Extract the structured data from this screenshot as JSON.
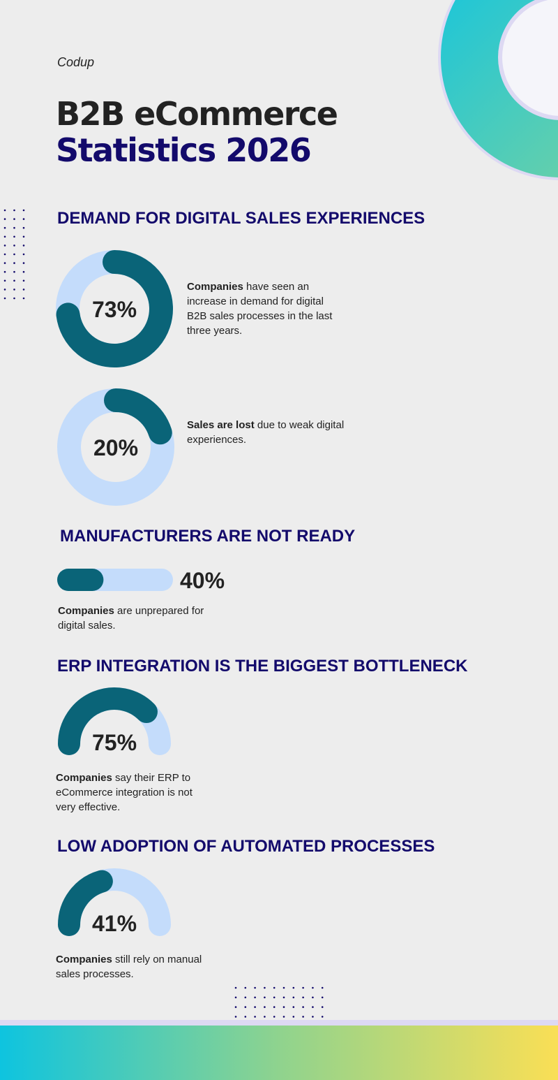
{
  "brand": "Codup",
  "title": {
    "line1": "B2B eCommerce",
    "line2": "Statistics 2026"
  },
  "sections": [
    {
      "heading": "DEMAND FOR DIGITAL SALES EXPERIENCES",
      "stats": [
        {
          "type": "donut",
          "value": 73,
          "value_label": "73%",
          "bold": "Companies",
          "text": "have seen an increase in demand for digital B2B sales processes in the last three years."
        },
        {
          "type": "donut",
          "value": 20,
          "value_label": "20%",
          "bold": "Sales are lost",
          "text": "due to weak digital experiences."
        }
      ]
    },
    {
      "heading": "MANUFACTURERS ARE NOT READY",
      "stats": [
        {
          "type": "bar",
          "value": 40,
          "value_label": "40%",
          "bold": "Companies",
          "text": "are unprepared for digital sales."
        }
      ]
    },
    {
      "heading": "ERP INTEGRATION IS THE BIGGEST BOTTLENECK",
      "stats": [
        {
          "type": "gauge",
          "value": 75,
          "value_label": "75%",
          "bold": "Companies",
          "text": "say their ERP to eCommerce integration is not very effective."
        }
      ]
    },
    {
      "heading": "LOW ADOPTION OF AUTOMATED PROCESSES",
      "stats": [
        {
          "type": "gauge",
          "value": 41,
          "value_label": "41%",
          "bold": "Companies",
          "text": "still rely on manual sales processes."
        }
      ]
    }
  ]
}
